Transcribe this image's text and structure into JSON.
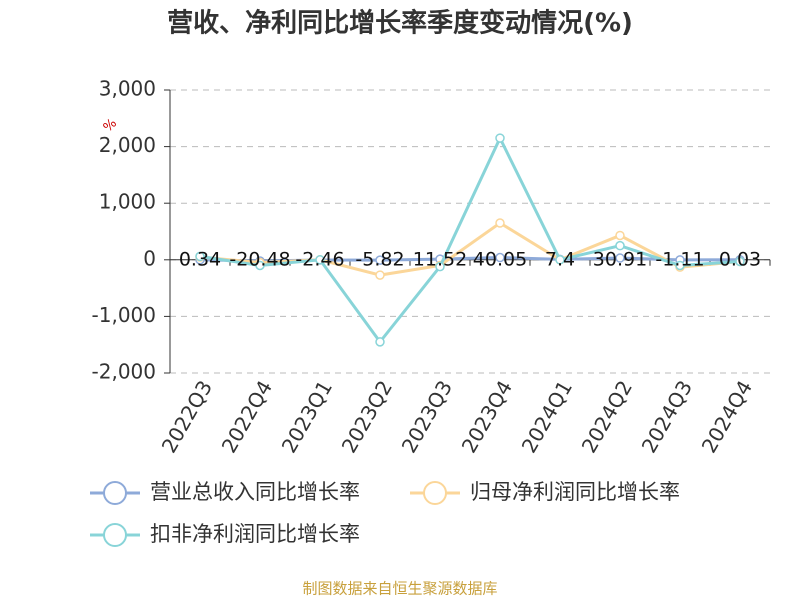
{
  "chart_data": {
    "type": "line",
    "title": "营收、净利同比增长率季度变动情况(%)",
    "y_label": "%",
    "categories": [
      "2022Q3",
      "2022Q4",
      "2023Q1",
      "2023Q2",
      "2023Q3",
      "2023Q4",
      "2024Q1",
      "2024Q2",
      "2024Q3",
      "2024Q4"
    ],
    "series": [
      {
        "name": "营业总收入同比增长率",
        "color": "#8eaad9",
        "values": [
          0.34,
          -20.48,
          -2.46,
          -5.82,
          11.52,
          40.05,
          7.4,
          30.91,
          -1.11,
          0.03
        ],
        "show_labels": true
      },
      {
        "name": "归母净利润同比增长率",
        "color": "#fbd699",
        "values": [
          50,
          -50,
          0,
          -270,
          -100,
          650,
          0,
          430,
          -130,
          -30
        ]
      },
      {
        "name": "扣非净利润同比增长率",
        "color": "#88d4d8",
        "values": [
          60,
          -100,
          0,
          -1450,
          -120,
          2150,
          0,
          250,
          -100,
          -30
        ]
      }
    ],
    "ylim": [
      -2000,
      3000
    ],
    "yticks": [
      {
        "value": -2000,
        "label": "-2,000"
      },
      {
        "value": -1000,
        "label": "-1,000"
      },
      0,
      {
        "value": 1000,
        "label": "1,000"
      },
      {
        "value": 2000,
        "label": "2,000"
      },
      {
        "value": 3000,
        "label": "3,000"
      }
    ],
    "grid": true,
    "source": "制图数据来自恒生聚源数据库"
  }
}
